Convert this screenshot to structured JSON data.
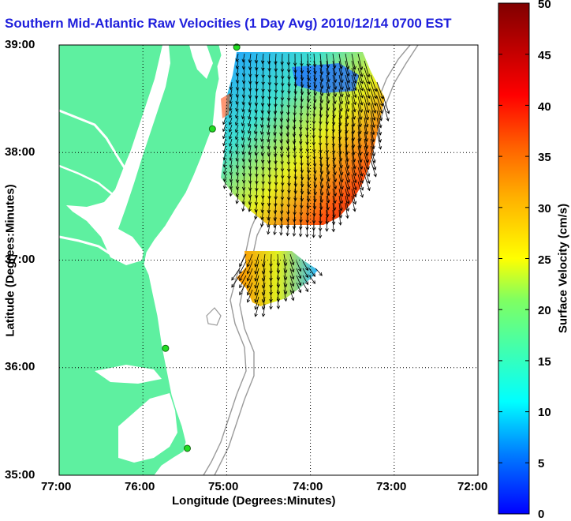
{
  "title": "Southern Mid-Atlantic Raw Velocities (1 Day Avg) 2010/12/14 0700 EST",
  "x_axis": {
    "label": "Longitude (Degrees:Minutes)",
    "ticks": [
      "77:00",
      "76:00",
      "75:00",
      "74:00",
      "73:00",
      "72:00"
    ]
  },
  "y_axis": {
    "label": "Latitude (Degrees:Minutes)",
    "ticks": [
      "39:00",
      "38:00",
      "37:00",
      "36:00",
      "35:00"
    ]
  },
  "colorbar": {
    "label": "Surface Velocity (cm/s)",
    "ticks": [
      "50",
      "45",
      "40",
      "35",
      "30",
      "25",
      "20",
      "15",
      "10",
      "5",
      "0"
    ],
    "range": [
      0,
      50
    ]
  },
  "extent": {
    "lon": [
      -77,
      -72
    ],
    "lat": [
      35,
      39
    ]
  },
  "grid": "dotted",
  "colors": {
    "land": "#5ef0a0",
    "title": "#1f1fdc",
    "bathymetry": "#9a9a9a",
    "vector": "#000000"
  },
  "hf_radar_sites": [
    {
      "lon": -74.88,
      "lat": 38.98
    },
    {
      "lon": -75.17,
      "lat": 38.22
    },
    {
      "lon": -75.73,
      "lat": 36.18
    },
    {
      "lon": -75.47,
      "lat": 35.25
    }
  ]
}
